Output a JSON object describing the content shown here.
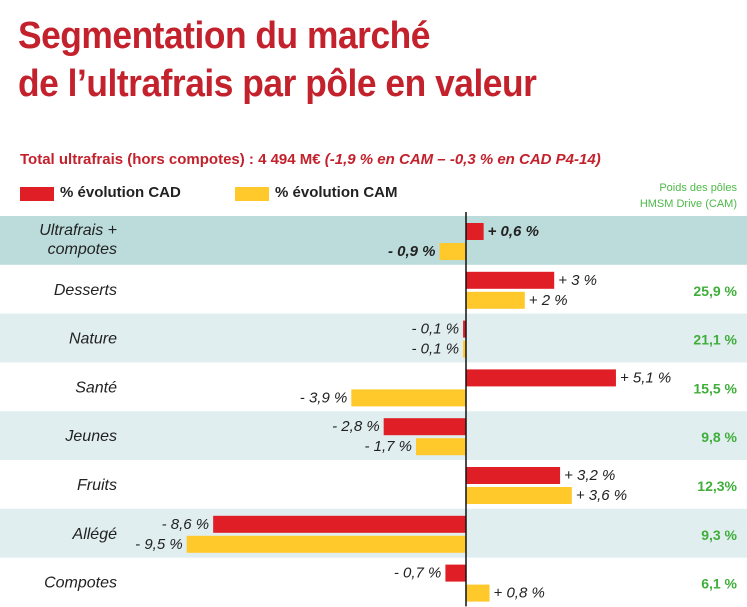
{
  "title_line1": "Segmentation du marché",
  "title_line2": "de l’ultrafrais par pôle en valeur",
  "subtitle_main": "Total ultrafrais (hors compotes) : 4 494 M€ ",
  "subtitle_italic": "(-1,9 % en CAM –  -0,3 % en CAD P4-14)",
  "legend": {
    "cad": "% évolution CAD",
    "cam": "% évolution CAM"
  },
  "weights_header_line1": "Poids des pôles",
  "weights_header_line2": "HMSM Drive (CAM)",
  "colors": {
    "cad": "#e01e25",
    "cam": "#ffc82b",
    "band_highlight": "#bcdcdc",
    "band_alt": "#e0eef0",
    "title": "#c3212c",
    "weights": "#3fae3a"
  },
  "chart_data": {
    "type": "bar",
    "orientation": "horizontal",
    "categories": [
      "Ultrafrais + compotes",
      "Desserts",
      "Nature",
      "Santé",
      "Jeunes",
      "Fruits",
      "Allégé",
      "Compotes"
    ],
    "category_display": [
      [
        "Ultrafrais +",
        "compotes"
      ],
      [
        "Desserts"
      ],
      [
        "Nature"
      ],
      [
        "Santé"
      ],
      [
        "Jeunes"
      ],
      [
        "Fruits"
      ],
      [
        "Allégé"
      ],
      [
        "Compotes"
      ]
    ],
    "series": [
      {
        "name": "% évolution CAD",
        "values": [
          0.6,
          3,
          -0.1,
          5.1,
          -2.8,
          3.2,
          -8.6,
          -0.7
        ],
        "labels": [
          "+ 0,6 %",
          "+ 3 %",
          "- 0,1 %",
          "+ 5,1 %",
          "- 2,8 %",
          "+ 3,2 %",
          "- 8,6 %",
          "- 0,7 %"
        ]
      },
      {
        "name": "% évolution CAM",
        "values": [
          -0.9,
          2,
          -0.1,
          -3.9,
          -1.7,
          3.6,
          -9.5,
          0.8
        ],
        "labels": [
          "- 0,9 %",
          "+ 2 %",
          "- 0,1 %",
          "- 3,9 %",
          "- 1,7 %",
          "+ 3,6 %",
          "- 9,5 %",
          "+ 0,8 %"
        ]
      }
    ],
    "weights": [
      "",
      "25,9 %",
      "21,1 %",
      "15,5 %",
      "9,8 %",
      "12,3%",
      "9,3 %",
      "6,1 %"
    ],
    "xlim": [
      -10,
      10
    ]
  }
}
